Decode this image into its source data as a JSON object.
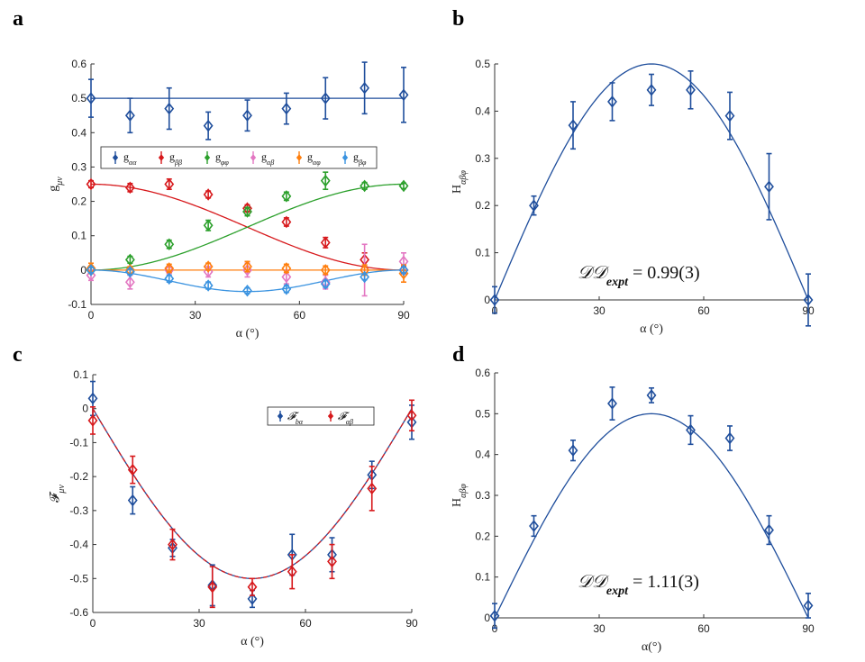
{
  "panels": [
    {
      "letter": "a"
    },
    {
      "letter": "b"
    },
    {
      "letter": "c"
    },
    {
      "letter": "d"
    }
  ],
  "colors": {
    "blue": "#1f4e9c",
    "red": "#d7191c",
    "green": "#2ca02c",
    "pink": "#e377c2",
    "orange": "#ff7f0e",
    "lightblue": "#3a93e0",
    "axis": "#333333"
  },
  "chart_data": [
    {
      "type": "scatter",
      "panel": "a",
      "xlabel": "α (°)",
      "ylabel": "g_μν",
      "xlim": [
        0,
        90
      ],
      "ylim": [
        -0.1,
        0.6
      ],
      "xticks": [
        0,
        30,
        60,
        90
      ],
      "yticks": [
        -0.1,
        0,
        0.1,
        0.2,
        0.3,
        0.4,
        0.5,
        0.6
      ],
      "ytick_labels": [
        "-0.1",
        "0",
        "0.1",
        "0.2",
        "0.3",
        "0.4",
        "0.5",
        "0.6"
      ],
      "legend": "upper-center",
      "x": [
        0,
        11.25,
        22.5,
        33.75,
        45,
        56.25,
        67.5,
        78.75,
        90
      ],
      "series": [
        {
          "name": "g_αα",
          "color": "blue",
          "values": [
            0.5,
            0.45,
            0.47,
            0.42,
            0.45,
            0.47,
            0.5,
            0.53,
            0.51
          ],
          "errors": [
            0.055,
            0.05,
            0.06,
            0.04,
            0.045,
            0.045,
            0.06,
            0.075,
            0.08
          ],
          "fit": "constant",
          "fit_value": 0.5
        },
        {
          "name": "g_ββ",
          "color": "red",
          "values": [
            0.25,
            0.24,
            0.25,
            0.22,
            0.18,
            0.14,
            0.08,
            0.03,
            0.0
          ],
          "errors": [
            0.01,
            0.012,
            0.015,
            0.01,
            0.01,
            0.012,
            0.015,
            0.02,
            0.01
          ],
          "fit": "0.25*cos^2"
        },
        {
          "name": "g_φφ",
          "color": "green",
          "values": [
            0.0,
            0.03,
            0.075,
            0.13,
            0.17,
            0.215,
            0.26,
            0.245,
            0.245
          ],
          "errors": [
            0.008,
            0.01,
            0.012,
            0.015,
            0.012,
            0.012,
            0.025,
            0.01,
            0.008
          ],
          "fit": "0.25*sin^2"
        },
        {
          "name": "g_αβ",
          "color": "pink",
          "values": [
            -0.015,
            -0.035,
            0.0,
            -0.005,
            0.0,
            -0.02,
            -0.035,
            0.0,
            0.025
          ],
          "errors": [
            0.015,
            0.02,
            0.01,
            0.015,
            0.02,
            0.02,
            0.02,
            0.075,
            0.025
          ],
          "fit": "none"
        },
        {
          "name": "g_αφ",
          "color": "orange",
          "values": [
            0.005,
            0.0,
            0.005,
            0.01,
            0.01,
            0.005,
            0.0,
            0.0,
            -0.01
          ],
          "errors": [
            0.015,
            0.01,
            0.012,
            0.01,
            0.015,
            0.012,
            0.012,
            0.015,
            0.025
          ],
          "fit": "constant",
          "fit_value": 0.0
        },
        {
          "name": "g_βφ",
          "color": "lightblue",
          "values": [
            0.0,
            -0.005,
            -0.025,
            -0.045,
            -0.06,
            -0.055,
            -0.04,
            -0.02,
            0.0
          ],
          "errors": [
            0.008,
            0.008,
            0.01,
            0.01,
            0.008,
            0.01,
            0.01,
            0.008,
            0.008
          ],
          "fit": "-0.0625*sin^2(2a)"
        }
      ]
    },
    {
      "type": "scatter",
      "panel": "b",
      "xlabel": "α (°)",
      "ylabel": "H_αβφ",
      "xlim": [
        0,
        90
      ],
      "ylim": [
        0,
        0.5
      ],
      "xticks": [
        0,
        30,
        60,
        90
      ],
      "yticks": [
        0,
        0.1,
        0.2,
        0.3,
        0.4,
        0.5
      ],
      "ytick_labels": [
        "0",
        "0.1",
        "0.2",
        "0.3",
        "0.4",
        "0.5"
      ],
      "annotation": "𝒟𝒟",
      "annotation_sub": "expt",
      "annotation_value": " = 0.99(3)",
      "x": [
        0,
        11.25,
        22.5,
        33.75,
        45,
        56.25,
        67.5,
        78.75,
        90
      ],
      "series": [
        {
          "color": "blue",
          "values": [
            0.0,
            0.2,
            0.37,
            0.42,
            0.445,
            0.445,
            0.39,
            0.24,
            0.0
          ],
          "errors": [
            0.028,
            0.02,
            0.05,
            0.04,
            0.033,
            0.04,
            0.05,
            0.07,
            0.055
          ],
          "fit": "0.5*sin(2a)"
        }
      ]
    },
    {
      "type": "scatter",
      "panel": "c",
      "xlabel": "α (°)",
      "ylabel": "𝓕_μν",
      "xlim": [
        0,
        90
      ],
      "ylim": [
        -0.6,
        0.1
      ],
      "xticks": [
        0,
        30,
        60,
        90
      ],
      "yticks": [
        -0.6,
        -0.5,
        -0.4,
        -0.3,
        -0.2,
        -0.1,
        0,
        0.1
      ],
      "ytick_labels": [
        "-0.6",
        "-0.5",
        "-0.4",
        "-0.3",
        "-0.2",
        "-0.1",
        "0",
        "0.1"
      ],
      "legend": "upper-right",
      "x": [
        0,
        11.25,
        22.5,
        33.75,
        45,
        56.25,
        67.5,
        78.75,
        90
      ],
      "series": [
        {
          "name": "𝓕_bα",
          "color": "blue",
          "values": [
            0.03,
            -0.27,
            -0.41,
            -0.52,
            -0.56,
            -0.43,
            -0.43,
            -0.195,
            -0.04
          ],
          "errors": [
            0.05,
            0.04,
            0.025,
            0.06,
            0.025,
            0.06,
            0.05,
            0.04,
            0.05
          ],
          "fit": "-0.5*sin(2a)"
        },
        {
          "name": "𝓕_αβ",
          "color": "red",
          "values": [
            -0.035,
            -0.18,
            -0.4,
            -0.525,
            -0.525,
            -0.48,
            -0.45,
            -0.235,
            -0.02
          ],
          "errors": [
            0.04,
            0.04,
            0.045,
            0.06,
            0.025,
            0.05,
            0.05,
            0.065,
            0.045
          ],
          "fit": "-0.5*sin(2a)",
          "fit_dashed": true
        }
      ]
    },
    {
      "type": "scatter",
      "panel": "d",
      "xlabel": "α(°)",
      "ylabel": "H_αβφ",
      "xlim": [
        0,
        90
      ],
      "ylim": [
        0,
        0.6
      ],
      "xticks": [
        0,
        30,
        60,
        90
      ],
      "yticks": [
        0,
        0.1,
        0.2,
        0.3,
        0.4,
        0.5,
        0.6
      ],
      "ytick_labels": [
        "0",
        "0.1",
        "0.2",
        "0.3",
        "0.4",
        "0.5",
        "0.6"
      ],
      "annotation": "𝒟𝒟",
      "annotation_sub": "expt",
      "annotation_value": " = 1.11(3)",
      "x": [
        0,
        11.25,
        22.5,
        33.75,
        45,
        56.25,
        67.5,
        78.75,
        90
      ],
      "series": [
        {
          "color": "blue",
          "values": [
            0.005,
            0.225,
            0.41,
            0.525,
            0.545,
            0.46,
            0.44,
            0.215,
            0.03
          ],
          "errors": [
            0.03,
            0.025,
            0.025,
            0.04,
            0.018,
            0.035,
            0.03,
            0.035,
            0.03
          ],
          "fit": "0.5*sin(2a)"
        }
      ]
    }
  ]
}
